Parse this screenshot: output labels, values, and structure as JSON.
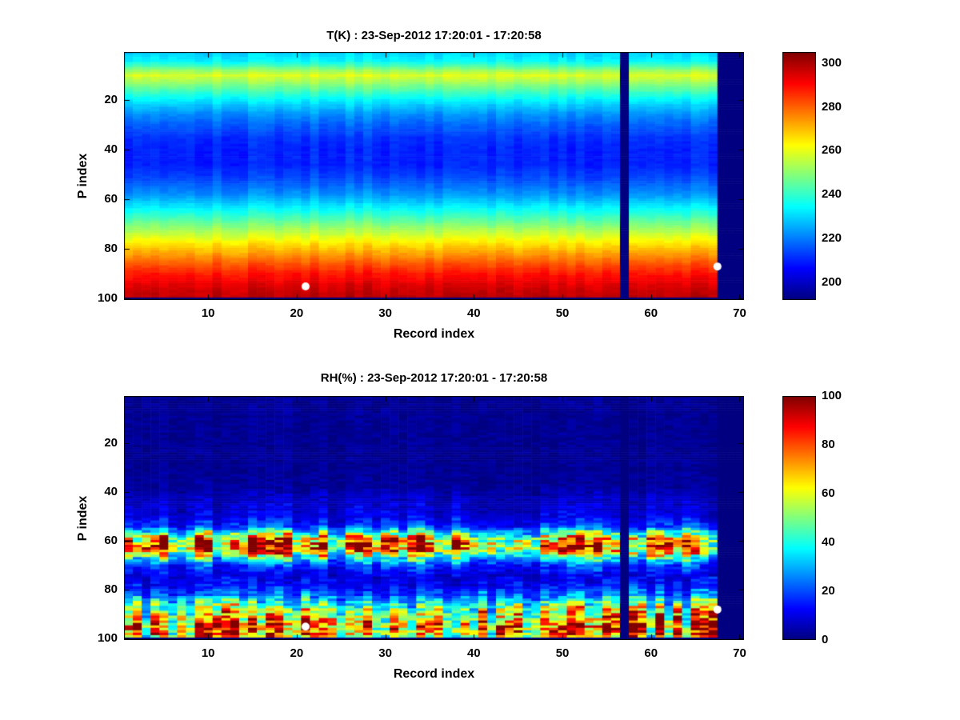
{
  "figure": {
    "background": "#ffffff"
  },
  "chart_data": [
    {
      "type": "heatmap",
      "title": "T(K) : 23-Sep-2012 17:20:01 - 17:20:58",
      "xlabel": "Record index",
      "ylabel": "P index",
      "x_range": [
        1,
        70
      ],
      "y_range": [
        1,
        100
      ],
      "y_axis_reversed": true,
      "xticks": [
        10,
        20,
        30,
        40,
        50,
        60,
        70
      ],
      "yticks": [
        20,
        40,
        60,
        80,
        100
      ],
      "colormap": "jet",
      "clim": [
        192,
        305
      ],
      "colorbar_ticks": [
        200,
        220,
        240,
        260,
        280,
        300
      ],
      "profile_p": [
        1,
        4,
        6,
        8,
        10,
        12,
        15,
        18,
        22,
        26,
        30,
        35,
        40,
        46,
        52,
        58,
        63,
        68,
        73,
        78,
        82,
        86,
        90,
        94,
        97,
        99
      ],
      "profile_value": [
        230,
        234,
        242,
        252,
        259,
        254,
        246,
        238,
        229,
        222,
        217,
        212,
        210,
        210,
        215,
        223,
        233,
        244,
        255,
        266,
        274,
        282,
        289,
        294,
        297,
        298
      ],
      "noise": {
        "mode": "additive",
        "column_amp": 2.5,
        "cell_amp": 1.2
      },
      "missing_columns": [
        57,
        68,
        69,
        70
      ],
      "missing_rows": [
        100
      ],
      "markers": [
        {
          "x": 21,
          "y": 95
        },
        {
          "x": 67.5,
          "y": 87
        }
      ],
      "marker_color": "#ffffff"
    },
    {
      "type": "heatmap",
      "title": "RH(%) : 23-Sep-2012 17:20:01 - 17:20:58",
      "xlabel": "Record index",
      "ylabel": "P index",
      "x_range": [
        1,
        70
      ],
      "y_range": [
        1,
        100
      ],
      "y_axis_reversed": true,
      "xticks": [
        10,
        20,
        30,
        40,
        50,
        60,
        70
      ],
      "yticks": [
        20,
        40,
        60,
        80,
        100
      ],
      "colormap": "jet",
      "clim": [
        0,
        100
      ],
      "colorbar_ticks": [
        0,
        20,
        40,
        60,
        80,
        100
      ],
      "profile_p": [
        1,
        30,
        38,
        42,
        46,
        50,
        54,
        57,
        59,
        61,
        63,
        65,
        67,
        70,
        74,
        78,
        82,
        85,
        88,
        91,
        94,
        96,
        98,
        99
      ],
      "profile_value": [
        2,
        2,
        3,
        6,
        8,
        10,
        18,
        45,
        68,
        80,
        78,
        60,
        38,
        18,
        10,
        12,
        22,
        38,
        52,
        62,
        72,
        78,
        70,
        60
      ],
      "noise": {
        "mode": "proportional",
        "column_gain_amp": 0.45,
        "cell_rel_amp": 0.35,
        "cell_abs_amp": 2,
        "band_split_p": 75
      },
      "missing_columns": [
        57,
        68,
        69,
        70
      ],
      "missing_rows": [
        100
      ],
      "markers": [
        {
          "x": 21,
          "y": 95
        },
        {
          "x": 67.5,
          "y": 88
        }
      ],
      "marker_color": "#ffffff"
    }
  ]
}
